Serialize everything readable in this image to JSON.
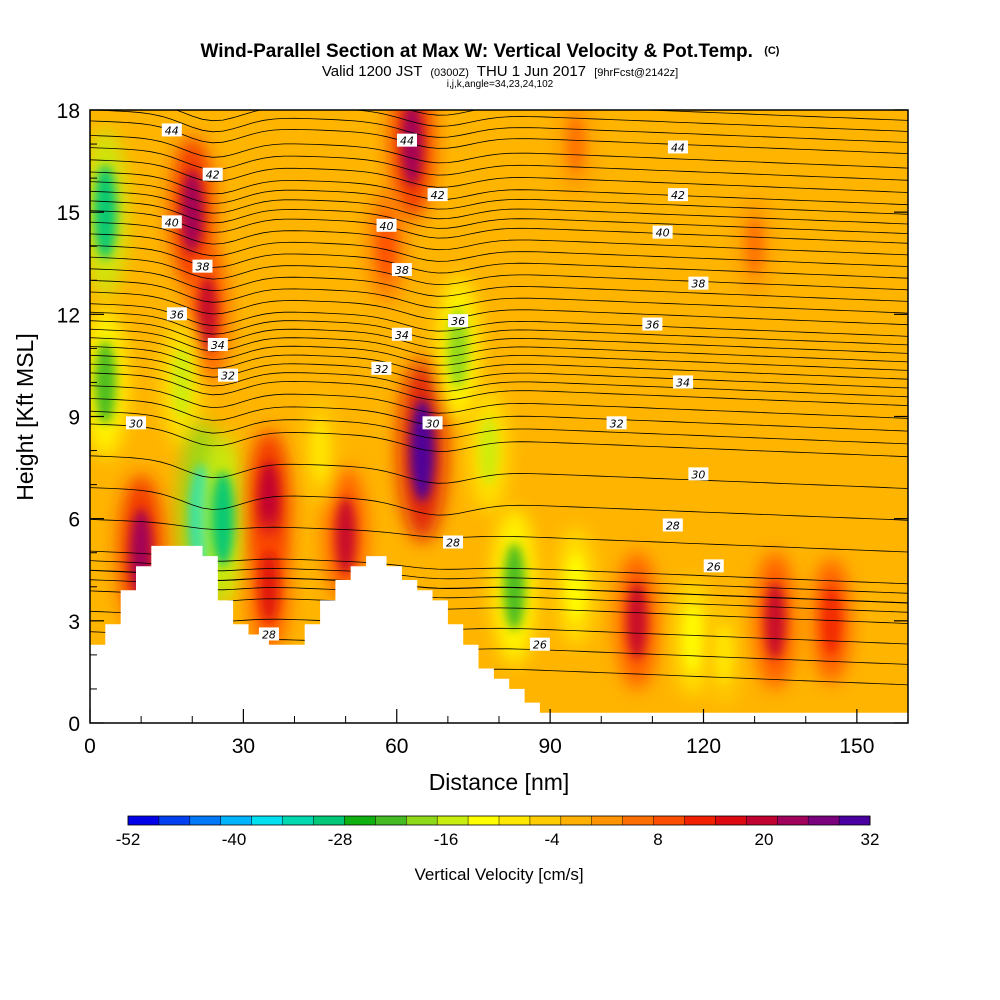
{
  "chart_data": {
    "type": "heatmap",
    "title": "Wind-Parallel Section at Max W: Vertical Velocity & Pot.Temp.",
    "title_units": "(C)",
    "subtitle_pre": "Valid 1200 JST",
    "subtitle_z": "(0300Z)",
    "subtitle_mid": "THU 1 Jun 2017",
    "subtitle_fcst": "[9hrFcst@2142z]",
    "subtitle2": "i,j,k,angle=34,23,24,102",
    "xlabel": "Distance [nm]",
    "ylabel": "Height [Kft MSL]",
    "xlim": [
      0,
      160
    ],
    "ylim": [
      0,
      18
    ],
    "xticks": [
      "0",
      "30",
      "60",
      "90",
      "120",
      "150"
    ],
    "yticks": [
      "0",
      "3",
      "6",
      "9",
      "12",
      "15",
      "18"
    ],
    "xtick_values": [
      0,
      30,
      60,
      90,
      120,
      150
    ],
    "ytick_values": [
      0,
      3,
      6,
      9,
      12,
      15,
      18
    ],
    "colorbar": {
      "label": "Vertical Velocity [cm/s]",
      "range": [
        -52,
        32
      ],
      "tick_labels": [
        "-52",
        "-40",
        "-28",
        "-16",
        "-4",
        "8",
        "20",
        "32"
      ],
      "tick_values": [
        -52,
        -40,
        -28,
        -16,
        -4,
        8,
        20,
        32
      ],
      "colors": [
        "#0000e8",
        "#0040f0",
        "#0078f8",
        "#00b4ff",
        "#00e0f0",
        "#00d8b0",
        "#00c878",
        "#10b010",
        "#44bb22",
        "#8ed81a",
        "#c8ee10",
        "#ffff00",
        "#ffe800",
        "#ffcc00",
        "#ffb000",
        "#ff9400",
        "#ff6e00",
        "#ff4e00",
        "#f02000",
        "#dc0a10",
        "#c00030",
        "#a0005c",
        "#7a007e",
        "#4a00a0"
      ]
    },
    "series": [
      {
        "name": "Vertical Velocity [cm/s]",
        "values": [
          {
            "x": 3,
            "y": 15,
            "w": -28
          },
          {
            "x": 3,
            "y": 10,
            "w": -22
          },
          {
            "x": 20,
            "y": 15,
            "w": 22
          },
          {
            "x": 23,
            "y": 12,
            "w": 18
          },
          {
            "x": 18,
            "y": 10,
            "w": -16
          },
          {
            "x": 22,
            "y": 6,
            "w": -36
          },
          {
            "x": 26,
            "y": 6,
            "w": -28
          },
          {
            "x": 10,
            "y": 5,
            "w": 24
          },
          {
            "x": 35,
            "y": 6.5,
            "w": 20
          },
          {
            "x": 35,
            "y": 4,
            "w": 16
          },
          {
            "x": 50,
            "y": 5.5,
            "w": 18
          },
          {
            "x": 45,
            "y": 8,
            "w": -10
          },
          {
            "x": 63,
            "y": 17,
            "w": 22
          },
          {
            "x": 65,
            "y": 8,
            "w": 32
          },
          {
            "x": 72,
            "y": 11,
            "w": -20
          },
          {
            "x": 78,
            "y": 8,
            "w": -14
          },
          {
            "x": 83,
            "y": 4,
            "w": -24
          },
          {
            "x": 95,
            "y": 4,
            "w": -12
          },
          {
            "x": 107,
            "y": 3,
            "w": 18
          },
          {
            "x": 118,
            "y": 2.5,
            "w": -12
          },
          {
            "x": 124,
            "y": 2,
            "w": -8
          },
          {
            "x": 134,
            "y": 3,
            "w": 18
          },
          {
            "x": 145,
            "y": 3,
            "w": 14
          },
          {
            "x": 58,
            "y": 14,
            "w": 10
          },
          {
            "x": 95,
            "y": 17,
            "w": 6
          },
          {
            "x": 130,
            "y": 14,
            "w": 6
          }
        ]
      },
      {
        "name": "Pot.Temp. (C)",
        "contour_labels": [
          {
            "text": "44",
            "x": 16,
            "y": 17.4
          },
          {
            "text": "44",
            "x": 62,
            "y": 17.1
          },
          {
            "text": "44",
            "x": 115,
            "y": 16.9
          },
          {
            "text": "42",
            "x": 24,
            "y": 16.1
          },
          {
            "text": "42",
            "x": 68,
            "y": 15.5
          },
          {
            "text": "42",
            "x": 115,
            "y": 15.5
          },
          {
            "text": "40",
            "x": 16,
            "y": 14.7
          },
          {
            "text": "40",
            "x": 58,
            "y": 14.6
          },
          {
            "text": "40",
            "x": 112,
            "y": 14.4
          },
          {
            "text": "38",
            "x": 22,
            "y": 13.4
          },
          {
            "text": "38",
            "x": 61,
            "y": 13.3
          },
          {
            "text": "38",
            "x": 119,
            "y": 12.9
          },
          {
            "text": "36",
            "x": 17,
            "y": 12.0
          },
          {
            "text": "36",
            "x": 72,
            "y": 11.8
          },
          {
            "text": "36",
            "x": 110,
            "y": 11.7
          },
          {
            "text": "34",
            "x": 25,
            "y": 11.1
          },
          {
            "text": "34",
            "x": 61,
            "y": 11.4
          },
          {
            "text": "34",
            "x": 116,
            "y": 10.0
          },
          {
            "text": "32",
            "x": 27,
            "y": 10.2
          },
          {
            "text": "32",
            "x": 57,
            "y": 10.4
          },
          {
            "text": "32",
            "x": 103,
            "y": 8.8
          },
          {
            "text": "30",
            "x": 9,
            "y": 8.8
          },
          {
            "text": "30",
            "x": 67,
            "y": 8.8
          },
          {
            "text": "30",
            "x": 119,
            "y": 7.3
          },
          {
            "text": "28",
            "x": 114,
            "y": 5.8
          },
          {
            "text": "28",
            "x": 71,
            "y": 5.3
          },
          {
            "text": "28",
            "x": 35,
            "y": 2.6
          },
          {
            "text": "26",
            "x": 122,
            "y": 4.6
          },
          {
            "text": "26",
            "x": 88,
            "y": 2.3
          }
        ]
      }
    ],
    "terrain_kft": [
      [
        0,
        2.3
      ],
      [
        3,
        2.3
      ],
      [
        3,
        2.9
      ],
      [
        6,
        2.9
      ],
      [
        6,
        3.9
      ],
      [
        9,
        3.9
      ],
      [
        9,
        4.6
      ],
      [
        12,
        4.6
      ],
      [
        12,
        5.2
      ],
      [
        22,
        5.2
      ],
      [
        22,
        4.9
      ],
      [
        25,
        4.9
      ],
      [
        25,
        3.6
      ],
      [
        28,
        3.6
      ],
      [
        28,
        2.9
      ],
      [
        31,
        2.9
      ],
      [
        31,
        2.6
      ],
      [
        35,
        2.6
      ],
      [
        35,
        2.3
      ],
      [
        42,
        2.3
      ],
      [
        42,
        2.9
      ],
      [
        45,
        2.9
      ],
      [
        45,
        3.6
      ],
      [
        48,
        3.6
      ],
      [
        48,
        4.2
      ],
      [
        51,
        4.2
      ],
      [
        51,
        4.6
      ],
      [
        54,
        4.6
      ],
      [
        54,
        4.9
      ],
      [
        58,
        4.9
      ],
      [
        58,
        4.6
      ],
      [
        61,
        4.6
      ],
      [
        61,
        4.2
      ],
      [
        64,
        4.2
      ],
      [
        64,
        3.9
      ],
      [
        67,
        3.9
      ],
      [
        67,
        3.6
      ],
      [
        70,
        3.6
      ],
      [
        70,
        2.9
      ],
      [
        73,
        2.9
      ],
      [
        73,
        2.3
      ],
      [
        76,
        2.3
      ],
      [
        76,
        1.6
      ],
      [
        79,
        1.6
      ],
      [
        79,
        1.3
      ],
      [
        82,
        1.3
      ],
      [
        82,
        1.0
      ],
      [
        85,
        1.0
      ],
      [
        85,
        0.6
      ],
      [
        88,
        0.6
      ],
      [
        88,
        0.3
      ],
      [
        161,
        0.3
      ]
    ]
  }
}
